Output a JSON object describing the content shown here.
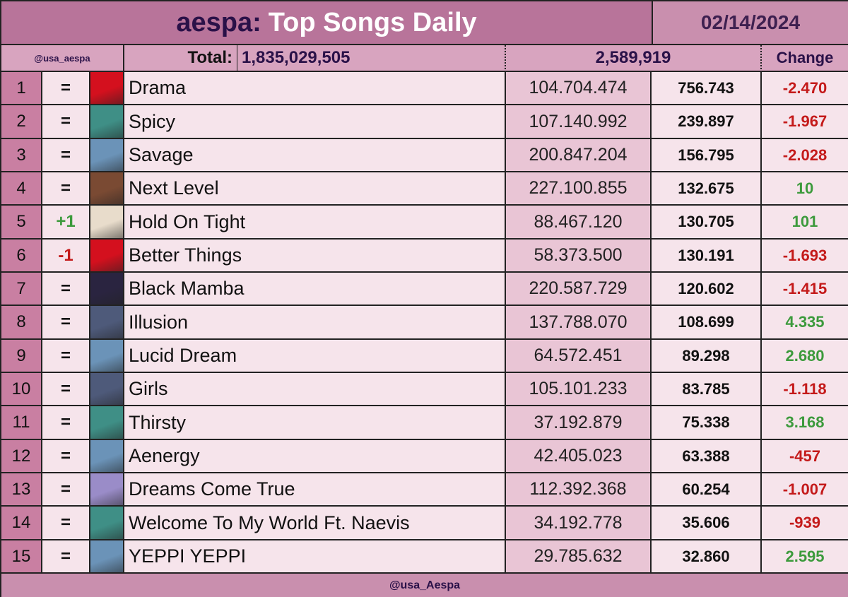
{
  "header": {
    "artist": "aespa:",
    "title": "Top Songs Daily",
    "date": "02/14/2024",
    "handle": "@usa_aespa",
    "total_label": "Total:",
    "total_value": "1,835,029,505",
    "daily_total": "2,589,919",
    "change_label": "Change"
  },
  "colors": {
    "positive": "#3c9a3c",
    "negative": "#c41a1a",
    "title_bar": "#b8749a"
  },
  "rows": [
    {
      "rank": "1",
      "move": "=",
      "move_type": "same",
      "art": "drama-cover",
      "art_color": "#d4101e",
      "song": "Drama",
      "total": "104.704.474",
      "daily": "756.743",
      "change": "-2.470",
      "change_type": "neg"
    },
    {
      "rank": "2",
      "move": "=",
      "move_type": "same",
      "art": "my-world-cover",
      "art_color": "#3f8f86",
      "song": "Spicy",
      "total": "107.140.992",
      "daily": "239.897",
      "change": "-1.967",
      "change_type": "neg"
    },
    {
      "rank": "3",
      "move": "=",
      "move_type": "same",
      "art": "savage-cover",
      "art_color": "#6b93b8",
      "song": "Savage",
      "total": "200.847.204",
      "daily": "156.795",
      "change": "-2.028",
      "change_type": "neg"
    },
    {
      "rank": "4",
      "move": "=",
      "move_type": "same",
      "art": "next-level-cover",
      "art_color": "#7a4a33",
      "song": "Next Level",
      "total": "227.100.855",
      "daily": "132.675",
      "change": "10",
      "change_type": "pos"
    },
    {
      "rank": "5",
      "move": "+1",
      "move_type": "up",
      "art": "hold-on-tight-cover",
      "art_color": "#e8dccb",
      "song": "Hold On Tight",
      "total": "88.467.120",
      "daily": "130.705",
      "change": "101",
      "change_type": "pos"
    },
    {
      "rank": "6",
      "move": "-1",
      "move_type": "down",
      "art": "drama-cover",
      "art_color": "#d4101e",
      "song": "Better Things",
      "total": "58.373.500",
      "daily": "130.191",
      "change": "-1.693",
      "change_type": "neg"
    },
    {
      "rank": "7",
      "move": "=",
      "move_type": "same",
      "art": "black-mamba-cover",
      "art_color": "#2a2440",
      "song": "Black Mamba",
      "total": "220.587.729",
      "daily": "120.602",
      "change": "-1.415",
      "change_type": "neg"
    },
    {
      "rank": "8",
      "move": "=",
      "move_type": "same",
      "art": "girls-cover",
      "art_color": "#4e5a7a",
      "song": "Illusion",
      "total": "137.788.070",
      "daily": "108.699",
      "change": "4.335",
      "change_type": "pos"
    },
    {
      "rank": "9",
      "move": "=",
      "move_type": "same",
      "art": "savage-cover",
      "art_color": "#6b93b8",
      "song": "Lucid Dream",
      "total": "64.572.451",
      "daily": "89.298",
      "change": "2.680",
      "change_type": "pos"
    },
    {
      "rank": "10",
      "move": "=",
      "move_type": "same",
      "art": "girls-cover",
      "art_color": "#4e5a7a",
      "song": "Girls",
      "total": "105.101.233",
      "daily": "83.785",
      "change": "-1.118",
      "change_type": "neg"
    },
    {
      "rank": "11",
      "move": "=",
      "move_type": "same",
      "art": "my-world-cover",
      "art_color": "#3f8f86",
      "song": "Thirsty",
      "total": "37.192.879",
      "daily": "75.338",
      "change": "3.168",
      "change_type": "pos"
    },
    {
      "rank": "12",
      "move": "=",
      "move_type": "same",
      "art": "savage-cover",
      "art_color": "#6b93b8",
      "song": "Aenergy",
      "total": "42.405.023",
      "daily": "63.388",
      "change": "-457",
      "change_type": "neg"
    },
    {
      "rank": "13",
      "move": "=",
      "move_type": "same",
      "art": "dreams-come-true-cover",
      "art_color": "#9a8cc8",
      "song": "Dreams Come True",
      "total": "112.392.368",
      "daily": "60.254",
      "change": "-1.007",
      "change_type": "neg"
    },
    {
      "rank": "14",
      "move": "=",
      "move_type": "same",
      "art": "my-world-cover",
      "art_color": "#3f8f86",
      "song": "Welcome To My World Ft. Naevis",
      "total": "34.192.778",
      "daily": "35.606",
      "change": "-939",
      "change_type": "neg"
    },
    {
      "rank": "15",
      "move": "=",
      "move_type": "same",
      "art": "savage-cover",
      "art_color": "#6b93b8",
      "song": "YEPPI YEPPI",
      "total": "29.785.632",
      "daily": "32.860",
      "change": "2.595",
      "change_type": "pos"
    }
  ],
  "footer": {
    "handle": "@usa_Aespa"
  }
}
